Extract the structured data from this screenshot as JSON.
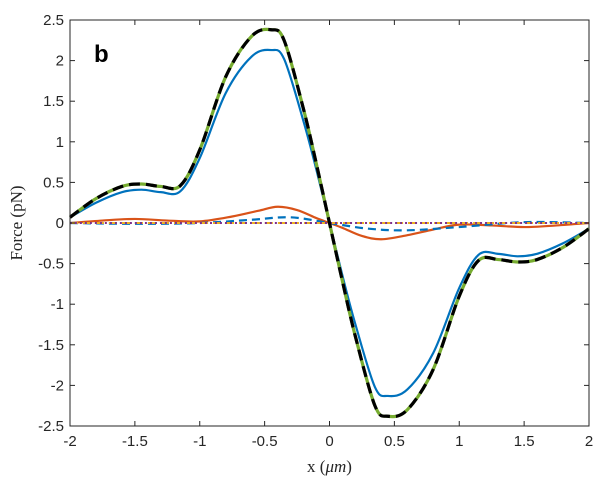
{
  "chart_data": {
    "type": "line",
    "panel_label": "b",
    "xlabel_text": "x (",
    "xlabel_unit": "μm",
    "xlabel_close": ")",
    "ylabel": "Force (pN)",
    "xlim": [
      -2,
      2
    ],
    "ylim": [
      -2.5,
      2.5
    ],
    "xticks": [
      -2,
      -1.5,
      -1,
      -0.5,
      0,
      0.5,
      1,
      1.5,
      2
    ],
    "xtick_labels": [
      "-2",
      "-1.5",
      "-1",
      "-0.5",
      "0",
      "0.5",
      "1",
      "1.5",
      "2"
    ],
    "yticks": [
      -2.5,
      -2,
      -1.5,
      -1,
      -0.5,
      0,
      0.5,
      1,
      1.5,
      2,
      2.5
    ],
    "ytick_labels": [
      "-2.5",
      "-2",
      "-1.5",
      "-1",
      "-0.5",
      "0",
      "0.5",
      "1",
      "1.5",
      "2",
      "2.5"
    ],
    "grid": false,
    "legend": "none",
    "series": [
      {
        "color": "#0072BD",
        "style": "solid",
        "x": [
          -2,
          -1.8,
          -1.6,
          -1.45,
          -1.3,
          -1.15,
          -1.0,
          -0.8,
          -0.6,
          -0.45,
          -0.35,
          -0.2,
          -0.1,
          0,
          0.1,
          0.2,
          0.35,
          0.45,
          0.6,
          0.8,
          1.0,
          1.15,
          1.3,
          1.45,
          1.6,
          1.8,
          2
        ],
        "y": [
          0.07,
          0.25,
          0.38,
          0.41,
          0.38,
          0.39,
          0.8,
          1.6,
          2.05,
          2.13,
          2.02,
          1.25,
          0.65,
          0,
          -0.65,
          -1.25,
          -2.02,
          -2.13,
          -2.05,
          -1.6,
          -0.8,
          -0.39,
          -0.38,
          -0.41,
          -0.38,
          -0.25,
          -0.07
        ]
      },
      {
        "color": "#77AC30",
        "style": "solid",
        "x": [
          -2,
          -1.8,
          -1.6,
          -1.45,
          -1.3,
          -1.15,
          -1.0,
          -0.8,
          -0.6,
          -0.45,
          -0.35,
          -0.2,
          -0.1,
          0,
          0.1,
          0.2,
          0.35,
          0.45,
          0.6,
          0.8,
          1.0,
          1.15,
          1.3,
          1.45,
          1.6,
          1.8,
          2
        ],
        "y": [
          0.07,
          0.3,
          0.45,
          0.48,
          0.45,
          0.46,
          0.9,
          1.8,
          2.3,
          2.38,
          2.25,
          1.4,
          0.72,
          0,
          -0.72,
          -1.4,
          -2.25,
          -2.38,
          -2.3,
          -1.8,
          -0.9,
          -0.46,
          -0.45,
          -0.48,
          -0.45,
          -0.3,
          -0.07
        ]
      },
      {
        "color": "#000000",
        "style": "dashed",
        "x": [
          -2,
          -1.8,
          -1.6,
          -1.45,
          -1.3,
          -1.15,
          -1.0,
          -0.8,
          -0.6,
          -0.45,
          -0.35,
          -0.2,
          -0.1,
          0,
          0.1,
          0.2,
          0.35,
          0.45,
          0.6,
          0.8,
          1.0,
          1.15,
          1.3,
          1.45,
          1.6,
          1.8,
          2
        ],
        "y": [
          0.07,
          0.3,
          0.45,
          0.48,
          0.45,
          0.46,
          0.9,
          1.8,
          2.3,
          2.38,
          2.25,
          1.4,
          0.72,
          0,
          -0.72,
          -1.4,
          -2.25,
          -2.38,
          -2.3,
          -1.8,
          -0.9,
          -0.46,
          -0.45,
          -0.48,
          -0.45,
          -0.3,
          -0.07
        ]
      },
      {
        "color": "#D95319",
        "style": "solid",
        "x": [
          -2,
          -1.75,
          -1.5,
          -1.25,
          -1.0,
          -0.75,
          -0.55,
          -0.4,
          -0.25,
          -0.1,
          0,
          0.1,
          0.25,
          0.4,
          0.6,
          0.8,
          1.0,
          1.25,
          1.5,
          1.75,
          2
        ],
        "y": [
          0.0,
          0.03,
          0.05,
          0.03,
          0.02,
          0.08,
          0.15,
          0.2,
          0.16,
          0.06,
          0.0,
          -0.06,
          -0.16,
          -0.2,
          -0.15,
          -0.08,
          -0.02,
          -0.03,
          -0.05,
          -0.03,
          0.0
        ]
      },
      {
        "color": "#0072BD",
        "style": "dashed",
        "x": [
          -2,
          -1.5,
          -1.0,
          -0.6,
          -0.3,
          0,
          0.3,
          0.6,
          1.0,
          1.5,
          2
        ],
        "y": [
          0.0,
          -0.01,
          0.0,
          0.04,
          0.07,
          0.0,
          -0.07,
          -0.09,
          -0.05,
          0.01,
          0.0
        ]
      },
      {
        "color": "#EDB120",
        "style": "dashed",
        "x": [
          -2,
          2
        ],
        "y": [
          0.0,
          0.0
        ]
      },
      {
        "color": "#7E2F8E",
        "style": "dotted",
        "x": [
          -2,
          2
        ],
        "y": [
          0.0,
          0.0
        ]
      }
    ]
  }
}
